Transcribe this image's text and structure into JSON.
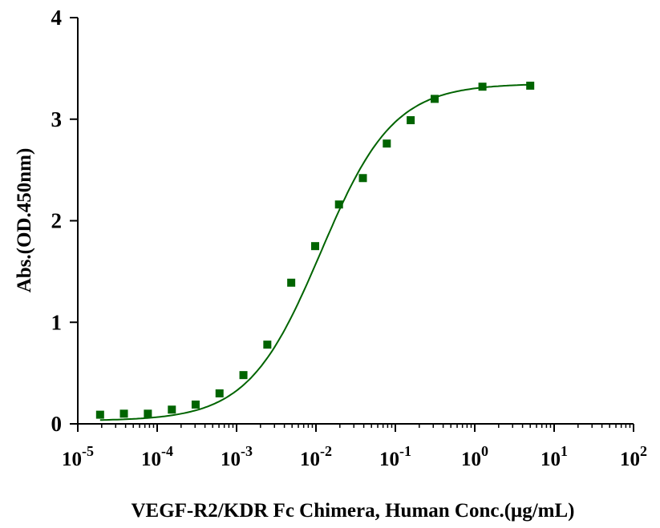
{
  "chart_data": {
    "type": "scatter",
    "xlabel": "VEGF-R2/KDR Fc Chimera, Human Conc.(μg/mL)",
    "ylabel": "Abs.(OD.450nm)",
    "xscale": "log",
    "xlim": [
      1e-05,
      100
    ],
    "ylim": [
      0,
      4
    ],
    "x_tick_exponents": [
      "-5",
      "-4",
      "-3",
      "-2",
      "-1",
      "0",
      "1",
      "2"
    ],
    "x_tick_base": "10",
    "y_ticks": [
      "0",
      "1",
      "2",
      "3",
      "4"
    ],
    "grid": false,
    "color": "#006400",
    "series": [
      {
        "name": "VEGF-R2/KDR Fc Chimera, Human",
        "x": [
          1.91e-05,
          3.81e-05,
          7.63e-05,
          0.000153,
          0.000305,
          0.00061,
          0.00122,
          0.00244,
          0.00488,
          0.00977,
          0.0195,
          0.039,
          0.078,
          0.156,
          0.3125,
          1.25,
          5
        ],
        "y": [
          0.09,
          0.1,
          0.1,
          0.14,
          0.19,
          0.3,
          0.48,
          0.78,
          1.39,
          1.75,
          2.16,
          2.42,
          2.76,
          2.99,
          3.2,
          3.32,
          3.33
        ]
      }
    ],
    "fit": {
      "model": "4PL",
      "bottom": 0.03,
      "top": 3.35,
      "ec50": 0.0115,
      "hill": 0.95,
      "x_range": [
        1.91e-05,
        5
      ]
    }
  }
}
